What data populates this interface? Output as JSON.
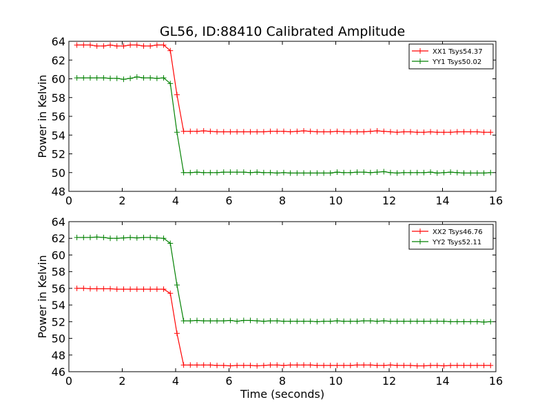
{
  "chart_data": [
    {
      "type": "line",
      "title": "GL56, ID:88410 Calibrated Amplitude",
      "xlabel": "",
      "ylabel": "Power in Kelvin",
      "xlim": [
        0,
        16
      ],
      "ylim": [
        48,
        64
      ],
      "xticks": [
        "0",
        "2",
        "4",
        "6",
        "8",
        "10",
        "12",
        "14",
        "16"
      ],
      "yticks": [
        "48",
        "50",
        "52",
        "54",
        "56",
        "58",
        "60",
        "62",
        "64"
      ],
      "grid": false,
      "legend_position": "top-right",
      "x": [
        0.3,
        0.55,
        0.8,
        1.05,
        1.3,
        1.55,
        1.8,
        2.05,
        2.3,
        2.55,
        2.8,
        3.05,
        3.3,
        3.55,
        3.8,
        4.05,
        4.3,
        4.55,
        4.8,
        5.05,
        5.3,
        5.55,
        5.8,
        6.05,
        6.3,
        6.55,
        6.8,
        7.05,
        7.3,
        7.55,
        7.8,
        8.05,
        8.3,
        8.55,
        8.8,
        9.05,
        9.3,
        9.55,
        9.8,
        10.05,
        10.3,
        10.55,
        10.8,
        11.05,
        11.3,
        11.55,
        11.8,
        12.05,
        12.3,
        12.55,
        12.8,
        13.05,
        13.3,
        13.55,
        13.8,
        14.05,
        14.3,
        14.55,
        14.8,
        15.05,
        15.3,
        15.55,
        15.8
      ],
      "series": [
        {
          "name": "XX1 Tsys54.37",
          "color": "#ff0000",
          "values": [
            63.6,
            63.6,
            63.6,
            63.5,
            63.5,
            63.6,
            63.5,
            63.5,
            63.6,
            63.6,
            63.5,
            63.5,
            63.6,
            63.6,
            63.0,
            58.3,
            54.4,
            54.4,
            54.4,
            54.45,
            54.4,
            54.35,
            54.35,
            54.35,
            54.35,
            54.35,
            54.35,
            54.35,
            54.35,
            54.4,
            54.4,
            54.4,
            54.35,
            54.4,
            54.45,
            54.4,
            54.35,
            54.35,
            54.35,
            54.4,
            54.35,
            54.35,
            54.35,
            54.35,
            54.4,
            54.45,
            54.4,
            54.35,
            54.3,
            54.35,
            54.35,
            54.3,
            54.3,
            54.35,
            54.3,
            54.3,
            54.3,
            54.35,
            54.35,
            54.35,
            54.35,
            54.3,
            54.3
          ]
        },
        {
          "name": "YY1 Tsys50.02",
          "color": "#008000",
          "values": [
            60.1,
            60.1,
            60.1,
            60.1,
            60.1,
            60.05,
            60.05,
            59.95,
            60.05,
            60.2,
            60.1,
            60.1,
            60.05,
            60.1,
            59.5,
            54.3,
            50.0,
            50.0,
            50.05,
            50.0,
            50.0,
            50.0,
            50.05,
            50.05,
            50.05,
            50.05,
            50.0,
            50.05,
            50.0,
            50.0,
            49.95,
            50.0,
            49.95,
            49.95,
            49.95,
            49.95,
            49.95,
            49.95,
            49.95,
            50.05,
            50.0,
            50.0,
            50.05,
            50.05,
            50.0,
            50.05,
            50.1,
            50.0,
            49.95,
            50.0,
            50.0,
            50.0,
            50.0,
            50.05,
            49.95,
            50.0,
            50.05,
            50.0,
            49.95,
            49.95,
            49.95,
            49.95,
            50.0
          ]
        }
      ]
    },
    {
      "type": "line",
      "title": "",
      "xlabel": "Time (seconds)",
      "ylabel": "Power in Kelvin",
      "xlim": [
        0,
        16
      ],
      "ylim": [
        46,
        64
      ],
      "xticks": [
        "0",
        "2",
        "4",
        "6",
        "8",
        "10",
        "12",
        "14",
        "16"
      ],
      "yticks": [
        "46",
        "48",
        "50",
        "52",
        "54",
        "56",
        "58",
        "60",
        "62",
        "64"
      ],
      "grid": false,
      "legend_position": "top-right",
      "x": [
        0.3,
        0.55,
        0.8,
        1.05,
        1.3,
        1.55,
        1.8,
        2.05,
        2.3,
        2.55,
        2.8,
        3.05,
        3.3,
        3.55,
        3.8,
        4.05,
        4.3,
        4.55,
        4.8,
        5.05,
        5.3,
        5.55,
        5.8,
        6.05,
        6.3,
        6.55,
        6.8,
        7.05,
        7.3,
        7.55,
        7.8,
        8.05,
        8.3,
        8.55,
        8.8,
        9.05,
        9.3,
        9.55,
        9.8,
        10.05,
        10.3,
        10.55,
        10.8,
        11.05,
        11.3,
        11.55,
        11.8,
        12.05,
        12.3,
        12.55,
        12.8,
        13.05,
        13.3,
        13.55,
        13.8,
        14.05,
        14.3,
        14.55,
        14.8,
        15.05,
        15.3,
        15.55,
        15.8
      ],
      "series": [
        {
          "name": "XX2 Tsys46.76",
          "color": "#ff0000",
          "values": [
            56.0,
            56.0,
            55.95,
            55.95,
            55.95,
            55.95,
            55.9,
            55.9,
            55.9,
            55.9,
            55.9,
            55.9,
            55.9,
            55.9,
            55.4,
            50.6,
            46.8,
            46.8,
            46.8,
            46.8,
            46.8,
            46.75,
            46.75,
            46.7,
            46.75,
            46.75,
            46.75,
            46.7,
            46.75,
            46.8,
            46.8,
            46.75,
            46.8,
            46.8,
            46.8,
            46.8,
            46.75,
            46.75,
            46.75,
            46.75,
            46.75,
            46.75,
            46.8,
            46.8,
            46.8,
            46.75,
            46.75,
            46.8,
            46.75,
            46.75,
            46.75,
            46.7,
            46.7,
            46.75,
            46.75,
            46.7,
            46.75,
            46.75,
            46.75,
            46.75,
            46.75,
            46.75,
            46.75
          ]
        },
        {
          "name": "YY2 Tsys52.11",
          "color": "#008000",
          "values": [
            62.1,
            62.1,
            62.1,
            62.15,
            62.1,
            62.0,
            62.0,
            62.05,
            62.1,
            62.05,
            62.1,
            62.1,
            62.05,
            62.0,
            61.4,
            56.4,
            52.1,
            52.1,
            52.15,
            52.1,
            52.1,
            52.1,
            52.1,
            52.15,
            52.05,
            52.15,
            52.15,
            52.1,
            52.05,
            52.1,
            52.1,
            52.05,
            52.05,
            52.05,
            52.05,
            52.05,
            52.0,
            52.05,
            52.05,
            52.1,
            52.05,
            52.05,
            52.05,
            52.1,
            52.1,
            52.05,
            52.1,
            52.05,
            52.05,
            52.05,
            52.05,
            52.05,
            52.05,
            52.05,
            52.05,
            52.05,
            52.0,
            52.0,
            52.0,
            52.0,
            52.0,
            51.95,
            52.0
          ]
        }
      ]
    }
  ]
}
